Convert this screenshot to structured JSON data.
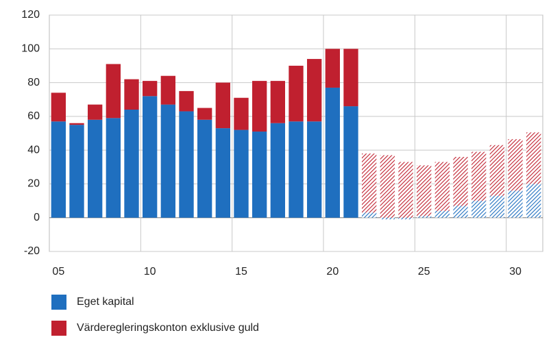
{
  "chart_data": {
    "type": "stacked_bar",
    "x": [
      5,
      6,
      7,
      8,
      9,
      10,
      11,
      12,
      13,
      14,
      15,
      16,
      17,
      18,
      19,
      20,
      21,
      22,
      23,
      24,
      25,
      26,
      27,
      28,
      29,
      30,
      31
    ],
    "series": [
      {
        "name": "Eget kapital",
        "color": "#1f6fbf",
        "values": [
          57,
          55,
          58,
          59,
          64,
          72,
          67,
          63,
          58,
          53,
          52,
          51,
          56,
          57,
          57,
          77,
          66,
          3,
          -1,
          -1,
          1,
          4,
          7,
          10,
          13,
          16,
          20
        ]
      },
      {
        "name": "Värderegleringskonton exklusive guld",
        "color": "#c0202f",
        "values": [
          17,
          1,
          9,
          32,
          18,
          9,
          17,
          12,
          7,
          27,
          19,
          30,
          25,
          33,
          37,
          23,
          34,
          35,
          37,
          33,
          30,
          29,
          29,
          29,
          30,
          30.5,
          30.5
        ]
      }
    ],
    "forecast_start": 22,
    "xlim": [
      4.5,
      31.5
    ],
    "xticks": [
      {
        "value": 5,
        "label": "05"
      },
      10,
      15,
      20,
      25,
      30
    ],
    "ylim": [
      -20,
      120
    ],
    "yticks": [
      -20,
      0,
      20,
      40,
      60,
      80,
      100,
      120
    ],
    "grid": true
  }
}
